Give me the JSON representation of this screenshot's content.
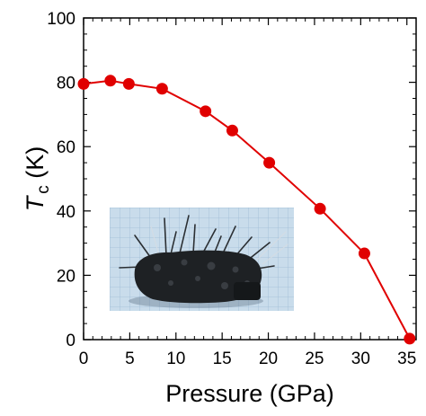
{
  "chart_data": {
    "type": "line",
    "title": "",
    "xlabel": "Pressure (GPa)",
    "ylabel_symbol": "T",
    "ylabel_subscript": "c",
    "ylabel_unit": " (K)",
    "xlim": [
      0,
      36
    ],
    "ylim": [
      0,
      100
    ],
    "x_ticks": [
      0,
      5,
      10,
      15,
      20,
      25,
      30,
      35
    ],
    "y_ticks": [
      0,
      20,
      40,
      60,
      80,
      100
    ],
    "grid": false,
    "series": [
      {
        "color": "#e00000",
        "marker": "circle",
        "x": [
          0,
          2.9,
          4.9,
          8.5,
          13.2,
          16.1,
          20.1,
          25.6,
          30.4,
          35.3
        ],
        "y": [
          79.5,
          80.5,
          79.5,
          78,
          71,
          65,
          55,
          40.7,
          26.8,
          0.3
        ]
      }
    ],
    "inset": {
      "content": "photo of spiky black crystal sample on blue grid paper"
    }
  }
}
